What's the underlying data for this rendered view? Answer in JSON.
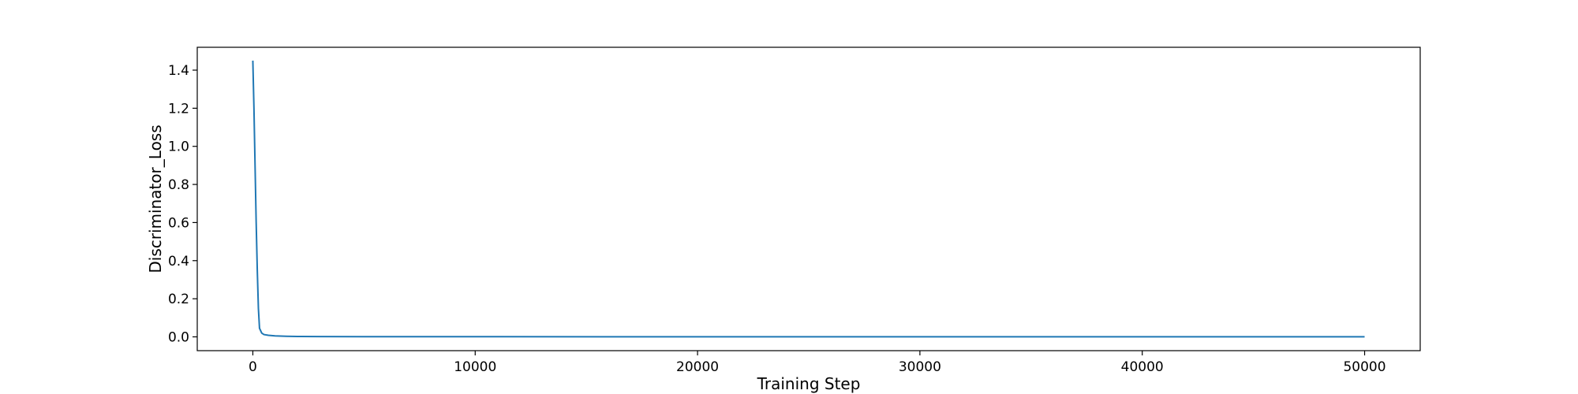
{
  "chart_data": {
    "type": "line",
    "xlabel": "Training Step",
    "ylabel": "Discriminator_Loss",
    "xlim": [
      -2500,
      52500
    ],
    "ylim": [
      -0.0725,
      1.52
    ],
    "xticks": [
      0,
      10000,
      20000,
      30000,
      40000,
      50000
    ],
    "yticks": [
      0.0,
      0.2,
      0.4,
      0.6,
      0.8,
      1.0,
      1.2,
      1.4
    ],
    "ytick_labels": [
      "0.0",
      "0.2",
      "0.4",
      "0.6",
      "0.8",
      "1.0",
      "1.2",
      "1.4"
    ],
    "grid": false,
    "series": [
      {
        "color": "#1f77b4",
        "x": [
          0,
          50,
          100,
          150,
          200,
          250,
          300,
          400,
          500,
          700,
          1000,
          1500,
          2000,
          3000,
          5000,
          10000,
          20000,
          30000,
          40000,
          50000
        ],
        "y": [
          1.45,
          1.2,
          0.9,
          0.6,
          0.35,
          0.15,
          0.045,
          0.02,
          0.012,
          0.008,
          0.005,
          0.003,
          0.002,
          0.0015,
          0.001,
          0.0008,
          0.0005,
          0.0004,
          0.0003,
          0.0002
        ]
      }
    ]
  }
}
